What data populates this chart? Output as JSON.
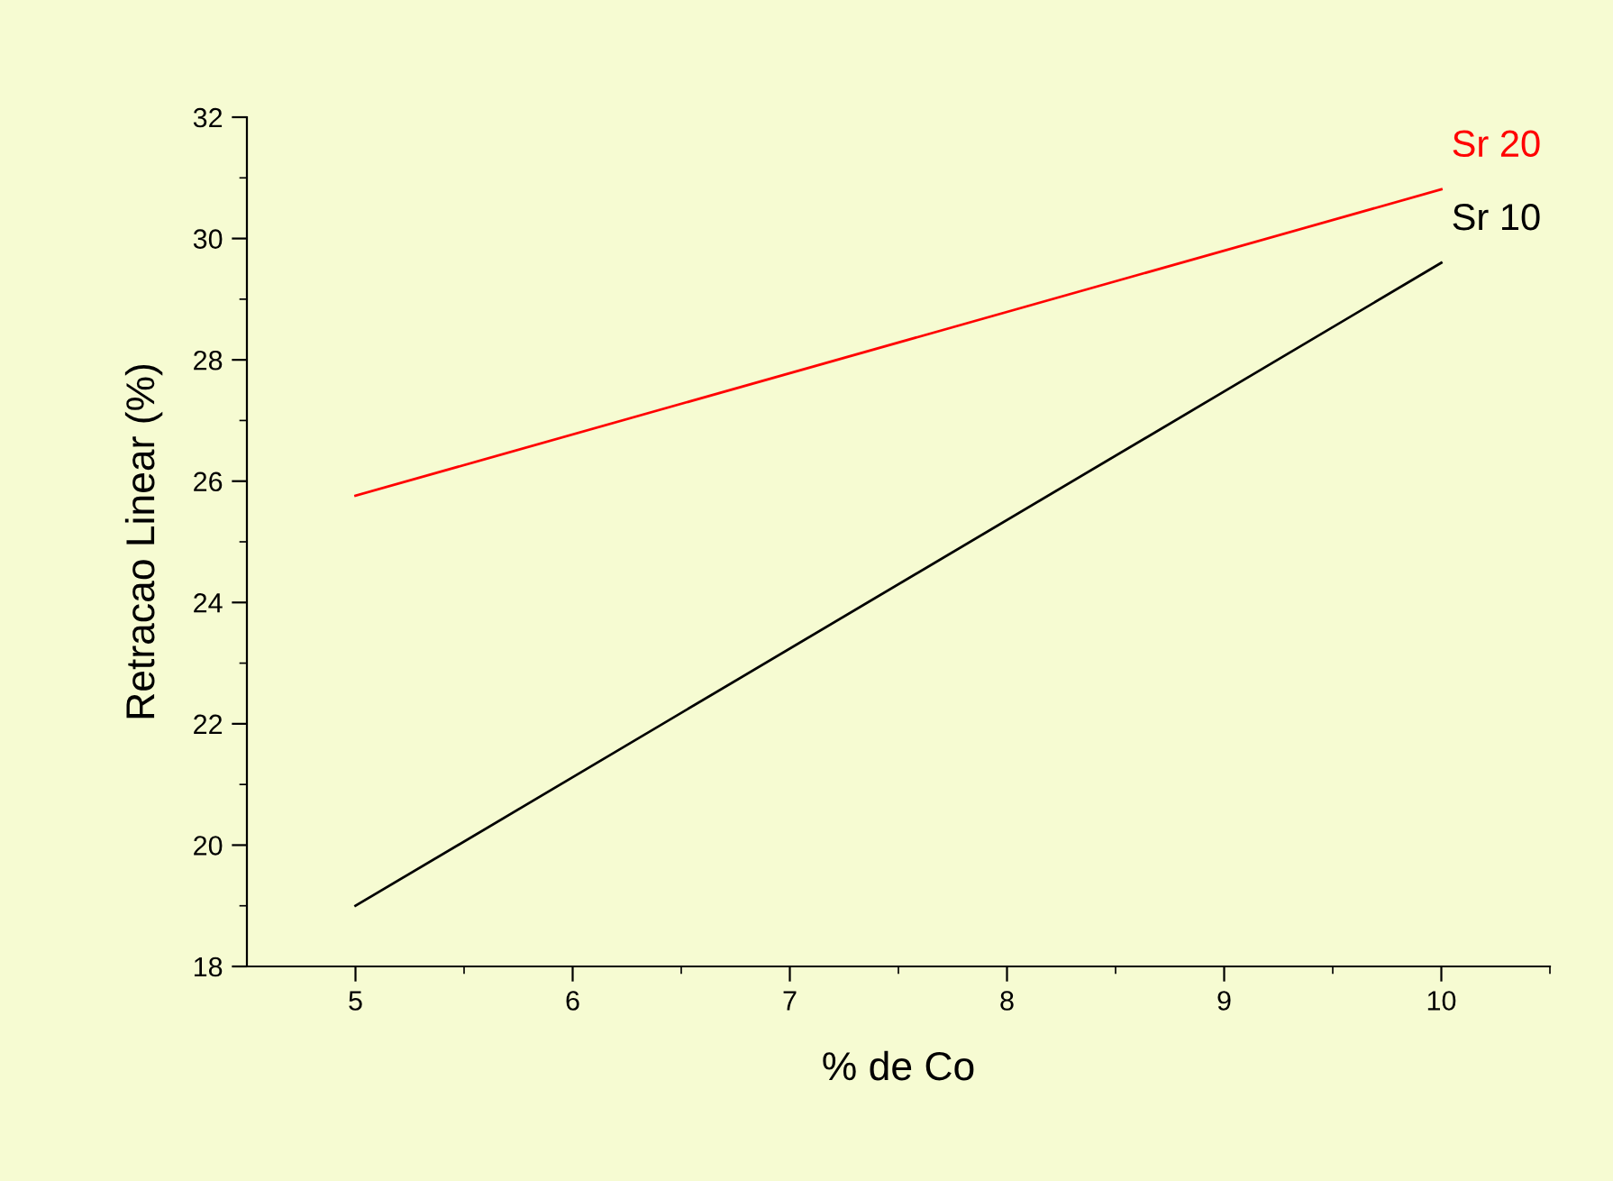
{
  "chart_data": {
    "type": "line",
    "xlabel": "% de Co",
    "ylabel": "Retracao Linear (%)",
    "x": [
      5,
      10
    ],
    "series": [
      {
        "name": "Sr 20",
        "color": "#ff0000",
        "values": [
          25.76,
          30.81
        ]
      },
      {
        "name": "Sr 10",
        "color": "#000000",
        "values": [
          19.0,
          29.6
        ]
      }
    ],
    "xlim": [
      4.5,
      10.5
    ],
    "xticks": [
      5,
      6,
      7,
      8,
      9,
      10
    ],
    "ylim": [
      18,
      32
    ],
    "yticks": [
      18,
      20,
      22,
      24,
      26,
      28,
      30,
      32
    ],
    "grid": false,
    "legend": false,
    "marker": "none",
    "line_style": "solid"
  }
}
